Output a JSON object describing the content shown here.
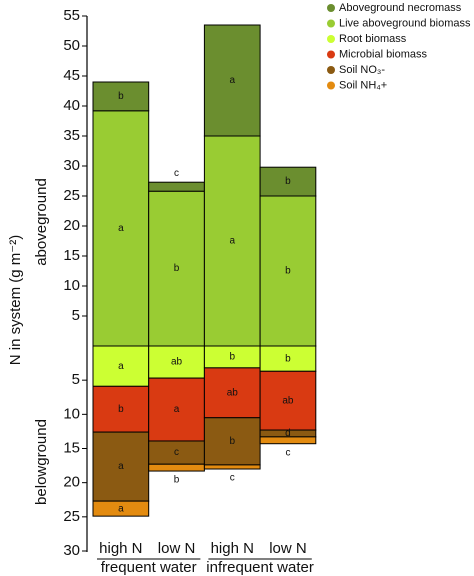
{
  "chart_data": [
    {
      "type": "bar",
      "stacked": true,
      "ylabel": "N in system (g m⁻²)",
      "panel_label": "aboveground",
      "categories": [
        "high N",
        "low N",
        "high N",
        "low N"
      ],
      "groups": [
        "frequent water",
        "infrequent water"
      ],
      "ylim": [
        0,
        55
      ],
      "yticks": [
        5,
        10,
        15,
        20,
        25,
        30,
        35,
        40,
        45,
        50,
        55
      ],
      "series": [
        {
          "name": "Aboveground necromass",
          "color": "#6b8e2f",
          "values": [
            4.8,
            1.5,
            18.5,
            4.8
          ],
          "letters": [
            "b",
            "c",
            "a",
            "b"
          ]
        },
        {
          "name": "Live aboveground biomass",
          "color": "#99cc33",
          "values": [
            39.2,
            25.8,
            35.0,
            25.0
          ],
          "letters": [
            "a",
            "b",
            "a",
            "b"
          ]
        }
      ]
    },
    {
      "type": "bar",
      "stacked": true,
      "inverted": true,
      "panel_label": "belowground",
      "ylim": [
        0,
        30
      ],
      "yticks": [
        5,
        10,
        15,
        20,
        25,
        30
      ],
      "series": [
        {
          "name": "Root biomass",
          "color": "#ccff33",
          "values": [
            5.9,
            4.7,
            3.2,
            3.7
          ],
          "letters": [
            "a",
            "ab",
            "b",
            "b"
          ]
        },
        {
          "name": "Microbial biomass",
          "color": "#d93a12",
          "values": [
            6.7,
            9.2,
            7.3,
            8.6
          ],
          "letters": [
            "b",
            "a",
            "ab",
            "ab"
          ]
        },
        {
          "name": "Soil NO₃-",
          "color": "#8b5a12",
          "values": [
            10.1,
            3.4,
            6.9,
            1.0
          ],
          "letters": [
            "a",
            "c",
            "b",
            "d"
          ]
        },
        {
          "name": "Soil NH₄+",
          "color": "#e38b10",
          "values": [
            2.2,
            1.0,
            0.6,
            1.0
          ],
          "letters": [
            "a",
            "b",
            "c",
            "c"
          ]
        }
      ]
    }
  ]
}
